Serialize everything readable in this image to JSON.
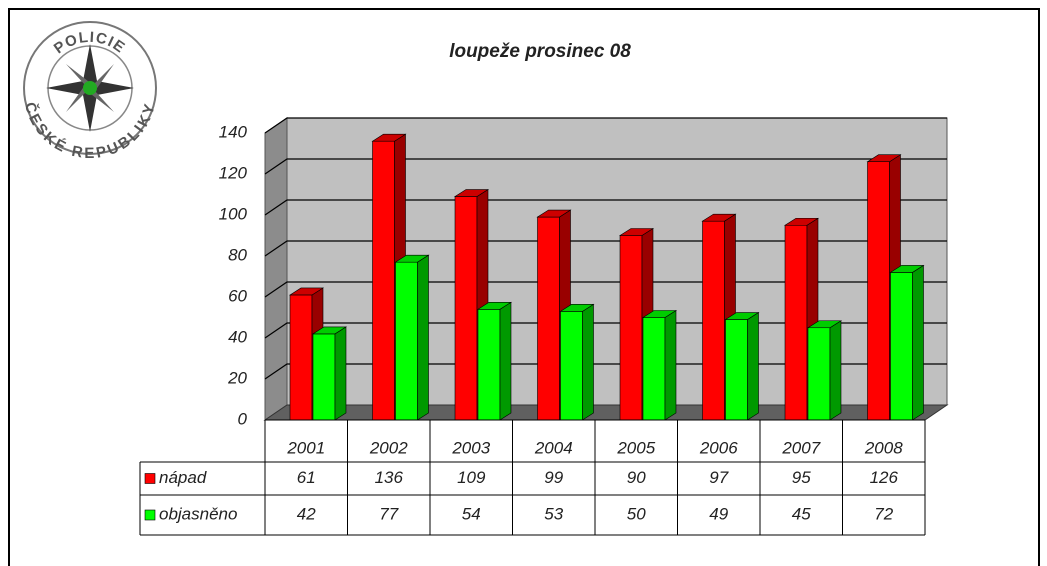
{
  "logo": {
    "top": "POLICIE",
    "bottom": "ČESKÉ REPUBLIKY"
  },
  "chart_data": {
    "type": "bar3d",
    "title": "loupeže prosinec 08",
    "categories": [
      "2001",
      "2002",
      "2003",
      "2004",
      "2005",
      "2006",
      "2007",
      "2008"
    ],
    "series": [
      {
        "name": "nápad",
        "color": "#ff0000",
        "values": [
          61,
          136,
          109,
          99,
          90,
          97,
          95,
          126
        ]
      },
      {
        "name": "objasněno",
        "color": "#00ff00",
        "values": [
          42,
          77,
          54,
          53,
          50,
          49,
          45,
          72
        ]
      }
    ],
    "ylim": [
      0,
      140
    ],
    "yticks": [
      0,
      20,
      40,
      60,
      80,
      100,
      120,
      140
    ],
    "grid": true,
    "data_table": true
  }
}
